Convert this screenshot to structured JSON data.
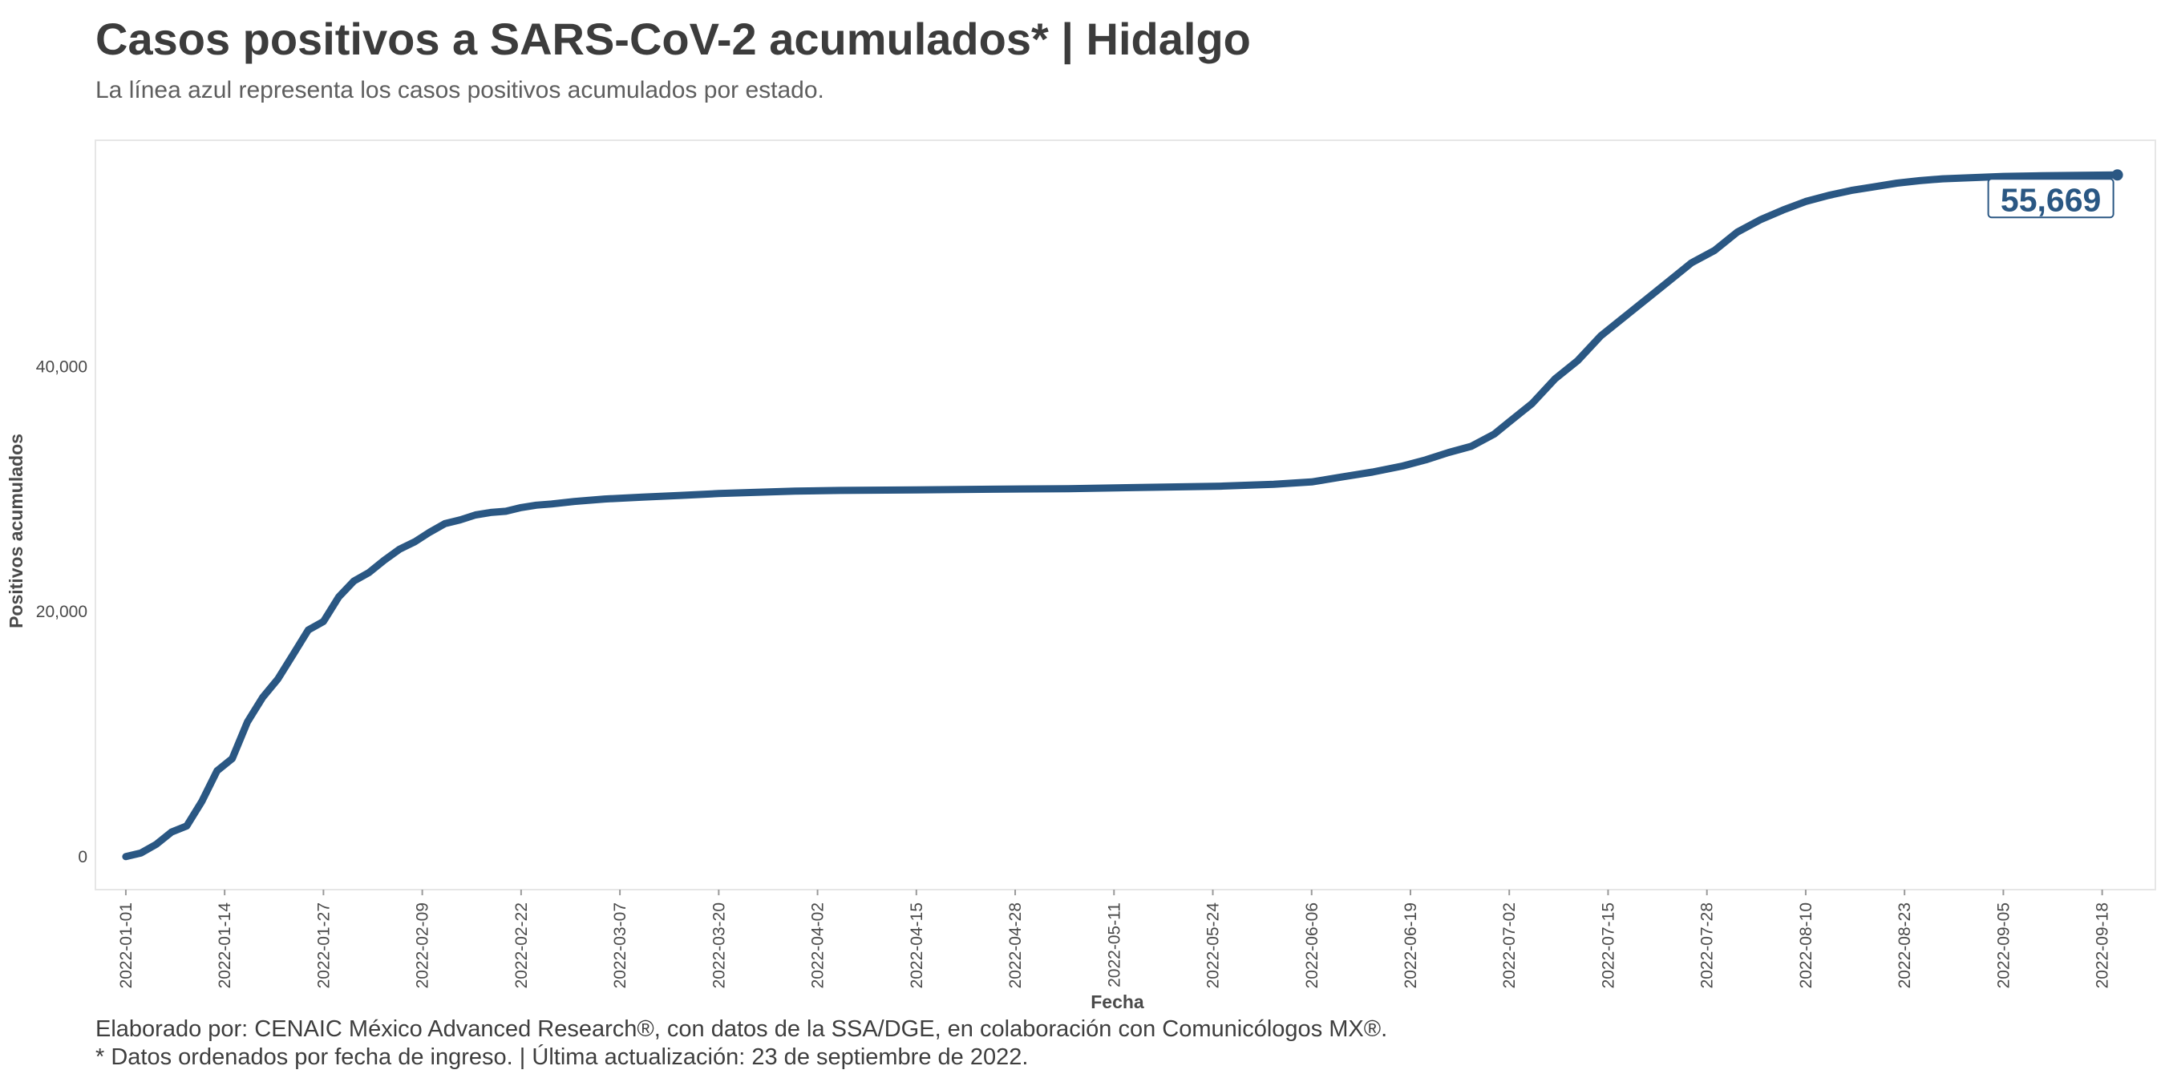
{
  "header": {
    "title": "Casos positivos a SARS-CoV-2 acumulados* | Hidalgo",
    "subtitle": "La línea azul representa los casos positivos acumulados por estado."
  },
  "footer": {
    "line1": "Elaborado por: CENAIC México Advanced Research®, con datos de la SSA/DGE, en colaboración con Comunicólogos MX®.",
    "line2": "* Datos ordenados por fecha de ingreso. | Última actualización: 23 de septiembre de 2022."
  },
  "colors": {
    "line": "#2a5783",
    "panel_border": "#e6e6e6"
  },
  "chart_data": {
    "type": "line",
    "title": "Casos positivos a SARS-CoV-2 acumulados* | Hidalgo",
    "xlabel": "Fecha",
    "ylabel": "Positivos acumulados",
    "x_ticks": [
      "2022-01-01",
      "2022-01-14",
      "2022-01-27",
      "2022-02-09",
      "2022-02-22",
      "2022-03-07",
      "2022-03-20",
      "2022-04-02",
      "2022-04-15",
      "2022-04-28",
      "2022-05-11",
      "2022-05-24",
      "2022-06-06",
      "2022-06-19",
      "2022-07-02",
      "2022-07-15",
      "2022-07-28",
      "2022-08-10",
      "2022-08-23",
      "2022-09-05",
      "2022-09-18"
    ],
    "y_ticks": [
      0,
      20000,
      40000
    ],
    "y_tick_labels": [
      "0",
      "20,000",
      "40,000"
    ],
    "xlim": [
      "2021-12-28",
      "2022-09-25"
    ],
    "ylim": [
      -2700,
      58500
    ],
    "grid": false,
    "end_label": "55,669",
    "series": [
      {
        "x": [
          "2022-01-01",
          "2022-01-03",
          "2022-01-05",
          "2022-01-07",
          "2022-01-09",
          "2022-01-11",
          "2022-01-13",
          "2022-01-15",
          "2022-01-17",
          "2022-01-19",
          "2022-01-21",
          "2022-01-23",
          "2022-01-25",
          "2022-01-27",
          "2022-01-29",
          "2022-01-31",
          "2022-02-02",
          "2022-02-04",
          "2022-02-06",
          "2022-02-08",
          "2022-02-10",
          "2022-02-12",
          "2022-02-14",
          "2022-02-16",
          "2022-02-18",
          "2022-02-20",
          "2022-02-22",
          "2022-02-24",
          "2022-02-26",
          "2022-03-01",
          "2022-03-05",
          "2022-03-10",
          "2022-03-15",
          "2022-03-20",
          "2022-03-25",
          "2022-03-30",
          "2022-04-05",
          "2022-04-15",
          "2022-04-25",
          "2022-05-05",
          "2022-05-15",
          "2022-05-25",
          "2022-06-01",
          "2022-06-06",
          "2022-06-10",
          "2022-06-14",
          "2022-06-18",
          "2022-06-21",
          "2022-06-24",
          "2022-06-27",
          "2022-06-30",
          "2022-07-02",
          "2022-07-05",
          "2022-07-08",
          "2022-07-11",
          "2022-07-14",
          "2022-07-17",
          "2022-07-20",
          "2022-07-23",
          "2022-07-26",
          "2022-07-29",
          "2022-08-01",
          "2022-08-04",
          "2022-08-07",
          "2022-08-10",
          "2022-08-13",
          "2022-08-16",
          "2022-08-19",
          "2022-08-22",
          "2022-08-25",
          "2022-08-28",
          "2022-09-01",
          "2022-09-05",
          "2022-09-10",
          "2022-09-15",
          "2022-09-20"
        ],
        "y": [
          0,
          300,
          1000,
          2000,
          2500,
          4500,
          7000,
          8000,
          11000,
          13000,
          14500,
          16500,
          18500,
          19200,
          21200,
          22500,
          23200,
          24200,
          25100,
          25700,
          26500,
          27200,
          27500,
          27900,
          28100,
          28200,
          28500,
          28700,
          28800,
          29000,
          29200,
          29350,
          29500,
          29650,
          29750,
          29850,
          29900,
          29950,
          30000,
          30050,
          30150,
          30250,
          30400,
          30600,
          31000,
          31400,
          31900,
          32400,
          33000,
          33500,
          34500,
          35500,
          37000,
          39000,
          40500,
          42500,
          44000,
          45500,
          47000,
          48500,
          49500,
          51000,
          52000,
          52800,
          53500,
          54000,
          54400,
          54700,
          55000,
          55200,
          55350,
          55450,
          55550,
          55600,
          55640,
          55669
        ]
      }
    ]
  }
}
